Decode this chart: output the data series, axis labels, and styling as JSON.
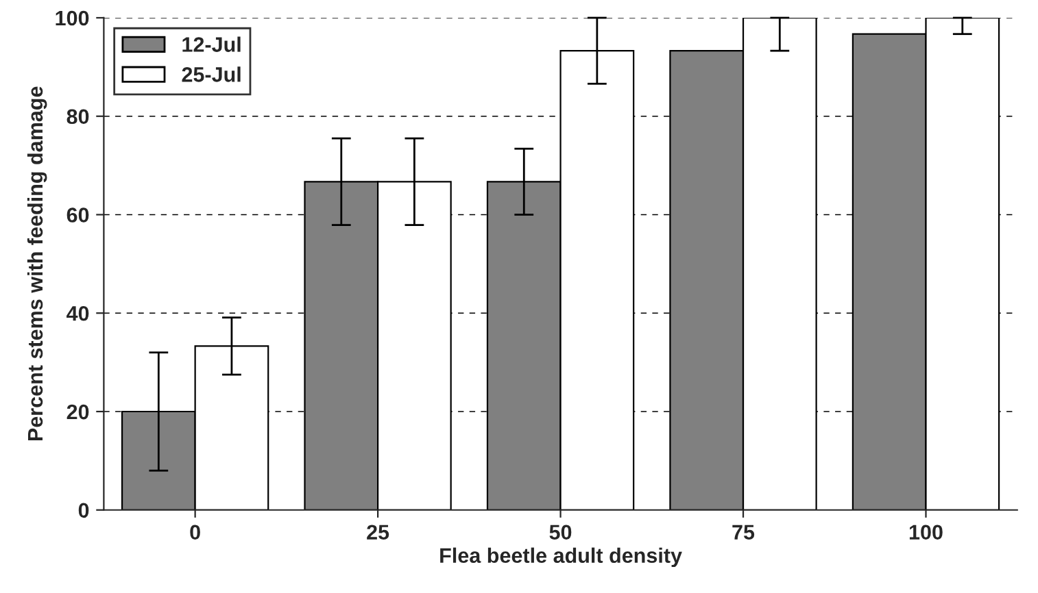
{
  "chart_data": {
    "type": "bar",
    "xlabel": "Flea beetle adult density",
    "ylabel": "Percent stems with feeding damage",
    "categories": [
      "0",
      "25",
      "50",
      "75",
      "100"
    ],
    "series": [
      {
        "name": "12-Jul",
        "color": "#808080",
        "values": [
          20,
          66.7,
          66.7,
          93.3,
          96.7
        ],
        "errors": [
          12,
          8.8,
          6.7,
          null,
          null
        ]
      },
      {
        "name": "25-Jul",
        "color": "#ffffff",
        "values": [
          33.3,
          66.7,
          93.3,
          100,
          100
        ],
        "errors": [
          5.8,
          8.8,
          6.7,
          [
            93.3,
            100
          ],
          [
            96.7,
            100
          ]
        ]
      }
    ],
    "ylim": [
      0,
      100
    ],
    "yticks": [
      0,
      20,
      40,
      60,
      80,
      100
    ],
    "grid": "y",
    "legend": "top left"
  }
}
